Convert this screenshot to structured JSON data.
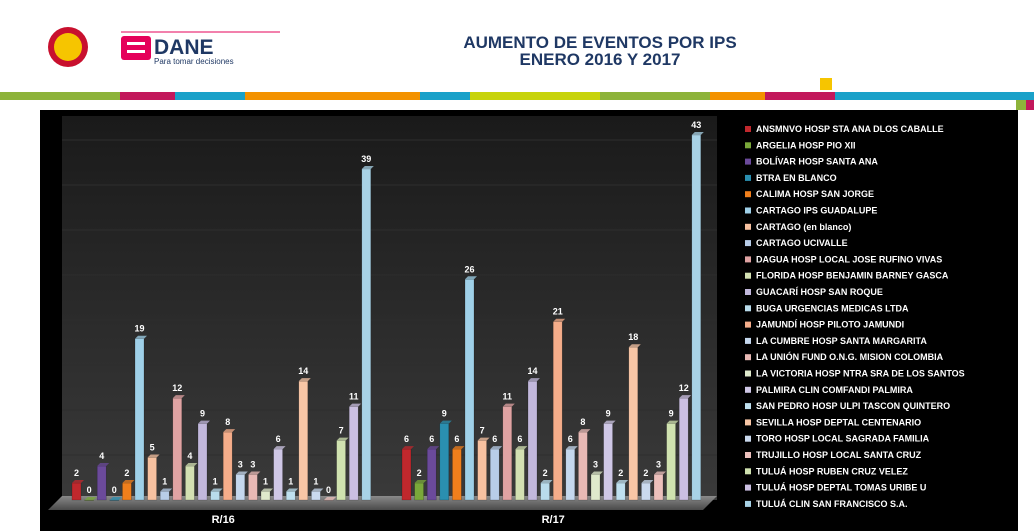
{
  "header": {
    "logo_name": "DANE",
    "logo_tagline": "Para tomar decisiones",
    "title_lines": [
      "AUMENTO DE EVENTOS POR IPS",
      "ENERO 2016 Y 2017"
    ]
  },
  "chart_data": {
    "type": "bar",
    "categories": [
      "R/16",
      "R/17"
    ],
    "series": [
      {
        "name": "ANSMNVO  HOSP STA ANA DLOS CABALLE",
        "color": "#c0282d",
        "values": [
          2,
          6
        ]
      },
      {
        "name": "ARGELIA  HOSP PIO XII",
        "color": "#7aa83a",
        "values": [
          0,
          2
        ]
      },
      {
        "name": "BOLÍVAR  HOSP SANTA ANA",
        "color": "#6b4a9b",
        "values": [
          4,
          6
        ]
      },
      {
        "name": "BTRA EN BLANCO",
        "color": "#2a8fb0",
        "values": [
          0,
          9
        ]
      },
      {
        "name": "CALIMA  HOSP SAN JORGE",
        "color": "#f07f1c",
        "values": [
          2,
          6
        ]
      },
      {
        "name": "CARTAGO  IPS GUADALUPE",
        "color": "#9fd0e8",
        "values": [
          19,
          26
        ]
      },
      {
        "name": "CARTAGO (en blanco)",
        "color": "#f7c1a0",
        "values": [
          5,
          7
        ]
      },
      {
        "name": "CARTAGO  UCIVALLE",
        "color": "#b8cde8",
        "values": [
          1,
          6
        ]
      },
      {
        "name": "DAGUA  HOSP LOCAL JOSE RUFINO VIVAS",
        "color": "#e0a3a3",
        "values": [
          12,
          11
        ]
      },
      {
        "name": "FLORIDA  HOSP BENJAMIN BARNEY GASCA",
        "color": "#d3e0b2",
        "values": [
          4,
          6
        ]
      },
      {
        "name": "GUACARÍ  HOSP SAN ROQUE",
        "color": "#c2b8dc",
        "values": [
          9,
          14
        ]
      },
      {
        "name": "BUGA  URGENCIAS MEDICAS LTDA",
        "color": "#b9dcec",
        "values": [
          1,
          2
        ]
      },
      {
        "name": "JAMUNDÍ  HOSP PILOTO JAMUNDI",
        "color": "#f5ad8a",
        "values": [
          8,
          21
        ]
      },
      {
        "name": "LA CUMBRE  HOSP SANTA MARGARITA",
        "color": "#c5d8ee",
        "values": [
          3,
          6
        ]
      },
      {
        "name": "LA UNIÓN  FUND O.N.G. MISION COLOMBIA",
        "color": "#e8b9b5",
        "values": [
          3,
          8
        ]
      },
      {
        "name": "LA VICTORIA  HOSP NTRA SRA DE LOS SANTOS",
        "color": "#dfe9cc",
        "values": [
          1,
          3
        ]
      },
      {
        "name": "PALMIRA  CLIN COMFANDI PALMIRA",
        "color": "#cfc7e6",
        "values": [
          6,
          9
        ]
      },
      {
        "name": "SAN PEDRO   HOSP ULPI TASCON QUINTERO",
        "color": "#bfe0ef",
        "values": [
          1,
          2
        ]
      },
      {
        "name": "SEVILLA  HOSP DEPTAL CENTENARIO",
        "color": "#f8c6a6",
        "values": [
          14,
          18
        ]
      },
      {
        "name": "TORO  HOSP LOCAL SAGRADA FAMILIA",
        "color": "#cad9ee",
        "values": [
          1,
          2
        ]
      },
      {
        "name": "TRUJILLO  HOSP LOCAL SANTA CRUZ",
        "color": "#ecc0bc",
        "values": [
          0,
          3
        ]
      },
      {
        "name": "TULUÁ  HOSP RUBEN CRUZ VELEZ",
        "color": "#d0e2b0",
        "values": [
          7,
          9
        ]
      },
      {
        "name": "TULUÁ  HOSP DEPTAL TOMAS URIBE U",
        "color": "#cbbfe2",
        "values": [
          11,
          12
        ]
      },
      {
        "name": "TULUÁ  CLIN SAN FRANCISCO S.A.",
        "color": "#a8d2e6",
        "values": [
          39,
          43
        ]
      }
    ]
  }
}
